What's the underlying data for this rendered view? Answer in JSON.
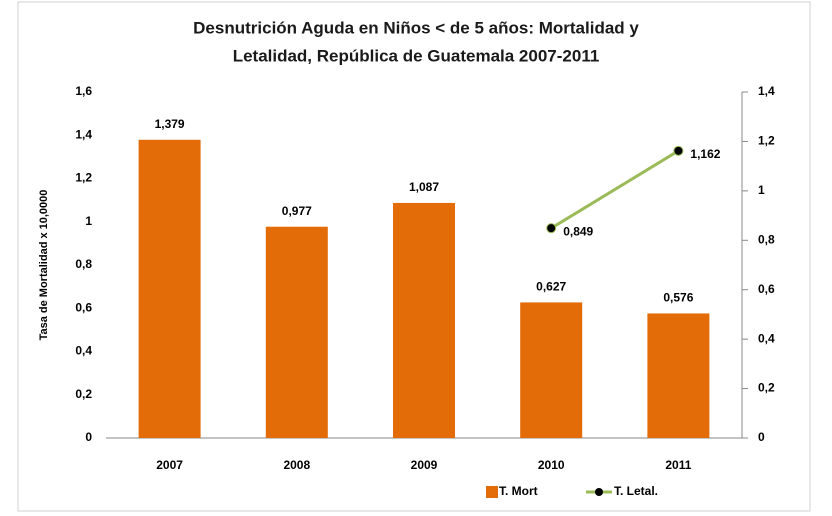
{
  "chart_data": {
    "type": "bar_line",
    "title": [
      "Desnutrición Aguda en Niños  < de 5 años: Mortalidad y",
      "Letalidad, República de Guatemala 2007-2011"
    ],
    "y_label": "Tasa de Mortalidad x 10,0000",
    "categories": [
      "2007",
      "2008",
      "2009",
      "2010",
      "2011"
    ],
    "series": [
      {
        "name": "T. Mort",
        "type": "bar",
        "color": "#e36c09",
        "values": [
          1.379,
          0.977,
          1.087,
          0.627,
          0.576
        ],
        "value_labels": [
          "1,379",
          "0,977",
          "1,087",
          "0,627",
          "0,576"
        ]
      },
      {
        "name": "T. Letal.",
        "type": "line",
        "axis": "y2",
        "color": "#9bbb59",
        "marker_color": "#000000",
        "values": [
          null,
          null,
          null,
          0.849,
          1.162
        ],
        "value_labels": [
          null,
          null,
          null,
          "0,849",
          "1,162"
        ]
      }
    ],
    "ylim": [
      0,
      1.6
    ],
    "yticks": [
      0,
      {
        "value": 0.2,
        "label": "0,2"
      },
      {
        "value": 0.4,
        "label": "0,4"
      },
      {
        "value": 0.6,
        "label": "0,6"
      },
      {
        "value": 0.8,
        "label": "0,8"
      },
      1,
      {
        "value": 1.2,
        "label": "1,2"
      },
      {
        "value": 1.4,
        "label": "1,4"
      },
      {
        "value": 1.6,
        "label": "1,6"
      }
    ],
    "y2lim": [
      0,
      1.4
    ],
    "y2ticks": [
      0,
      {
        "value": 0.2,
        "label": "0,2"
      },
      {
        "value": 0.4,
        "label": "0,4"
      },
      {
        "value": 0.6,
        "label": "0,6"
      },
      {
        "value": 0.8,
        "label": "0,8"
      },
      1,
      {
        "value": 1.2,
        "label": "1,2"
      },
      {
        "value": 1.4,
        "label": "1,4"
      }
    ],
    "grid": false,
    "legend": "bottom"
  }
}
